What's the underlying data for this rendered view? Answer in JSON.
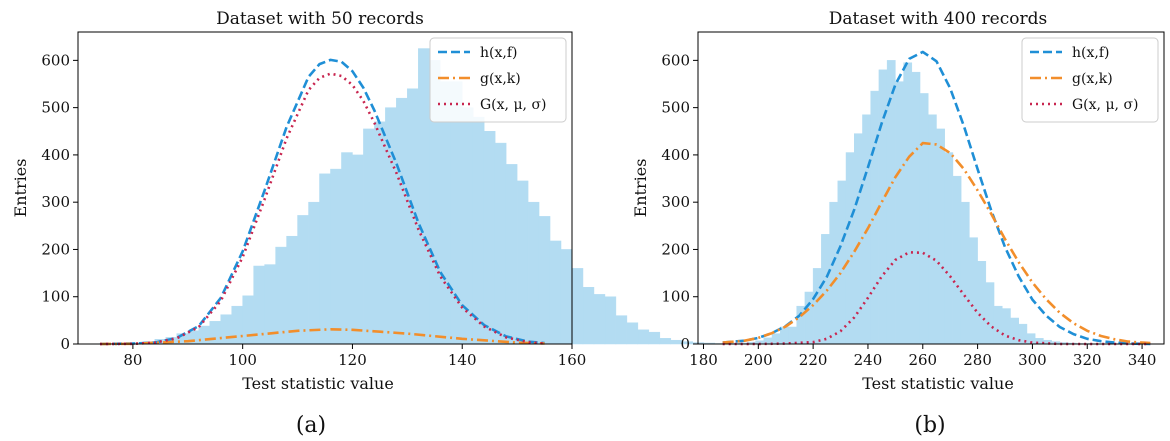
{
  "chart_data": [
    {
      "type": "bar",
      "title": "Dataset with 50 records",
      "xlabel": "Test statistic value",
      "ylabel": "Entries",
      "caption": "(a)",
      "xlim": [
        70,
        160
      ],
      "ylim": [
        0,
        660
      ],
      "xticks": [
        "80",
        "100",
        "120",
        "140",
        "160"
      ],
      "yticks": [
        "0",
        "100",
        "200",
        "300",
        "400",
        "500",
        "600"
      ],
      "xtick_values": [
        80,
        100,
        120,
        140,
        160
      ],
      "ytick_values": [
        0,
        100,
        200,
        300,
        400,
        500,
        600
      ],
      "legend_position": "top-right",
      "histogram": {
        "bin_start": 74,
        "bin_width": 2,
        "counts": [
          1,
          1,
          2,
          3,
          5,
          10,
          14,
          22,
          28,
          38,
          48,
          62,
          80,
          102,
          165,
          168,
          205,
          228,
          272,
          300,
          360,
          370,
          405,
          400,
          455,
          470,
          500,
          520,
          540,
          625,
          600,
          555,
          555,
          500,
          480,
          450,
          425,
          380,
          345,
          300,
          270,
          218,
          200,
          160,
          120,
          105,
          100,
          60,
          45,
          30,
          25,
          12,
          8,
          5,
          3,
          2,
          1,
          1,
          1,
          0,
          0
        ]
      },
      "series": [
        {
          "name": "h(x,f)",
          "style": "dashed",
          "color": "#1f8fd6",
          "x": [
            74,
            80,
            84,
            88,
            92,
            96,
            100,
            104,
            108,
            112,
            114,
            116,
            118,
            120,
            122,
            124,
            128,
            132,
            136,
            140,
            144,
            148,
            152,
            155
          ],
          "y": [
            0,
            1,
            3,
            13,
            38,
            97,
            196,
            325,
            459,
            565,
            592,
            601,
            597,
            577,
            542,
            494,
            382,
            257,
            152,
            82,
            40,
            16,
            5,
            2
          ]
        },
        {
          "name": "g(x,k)",
          "style": "dashdot",
          "color": "#f28e2b",
          "x": [
            74,
            80,
            90,
            100,
            110,
            116,
            120,
            130,
            140,
            150,
            155
          ],
          "y": [
            0,
            0.5,
            6,
            17,
            28,
            31,
            30,
            22,
            11,
            3,
            1
          ]
        },
        {
          "name": "G(x, μ, σ)",
          "style": "dotted",
          "color": "#c8254f",
          "x": [
            74,
            80,
            84,
            88,
            92,
            96,
            100,
            104,
            108,
            112,
            114,
            116,
            118,
            120,
            122,
            124,
            128,
            132,
            136,
            140,
            144,
            148,
            152,
            155
          ],
          "y": [
            0,
            0.5,
            3,
            12,
            36,
            91,
            184,
            306,
            435,
            537,
            563,
            572,
            567,
            548,
            514,
            468,
            362,
            243,
            143,
            77,
            37,
            14,
            4,
            1
          ]
        }
      ]
    },
    {
      "type": "bar",
      "title": "Dataset with 400 records",
      "xlabel": "Test statistic value",
      "ylabel": "Entries",
      "caption": "(b)",
      "xlim": [
        178,
        348
      ],
      "ylim": [
        0,
        660
      ],
      "xticks": [
        "180",
        "200",
        "220",
        "240",
        "260",
        "280",
        "300",
        "320",
        "340"
      ],
      "yticks": [
        "0",
        "100",
        "200",
        "300",
        "400",
        "500",
        "600"
      ],
      "xtick_values": [
        180,
        200,
        220,
        240,
        260,
        280,
        300,
        320,
        340
      ],
      "ytick_values": [
        0,
        100,
        200,
        300,
        400,
        500,
        600
      ],
      "legend_position": "top-right",
      "histogram": {
        "bin_start": 187,
        "bin_width": 3,
        "counts": [
          0,
          1,
          2,
          4,
          7,
          13,
          22,
          36,
          36,
          80,
          110,
          160,
          232,
          300,
          345,
          405,
          445,
          485,
          535,
          580,
          600,
          555,
          595,
          575,
          530,
          485,
          455,
          405,
          355,
          300,
          225,
          175,
          130,
          80,
          75,
          55,
          42,
          22,
          12,
          8,
          5,
          3,
          2,
          1,
          1,
          0,
          0,
          0,
          0,
          0,
          0,
          0,
          0
        ]
      },
      "series": [
        {
          "name": "h(x,f)",
          "style": "dashed",
          "color": "#1f8fd6",
          "x": [
            187,
            195,
            200,
            205,
            210,
            215,
            220,
            225,
            230,
            235,
            240,
            245,
            250,
            255,
            260,
            265,
            270,
            275,
            280,
            285,
            290,
            295,
            300,
            305,
            310,
            315,
            320,
            325,
            330,
            335,
            343
          ],
          "y": [
            3,
            7,
            13,
            23,
            38,
            60,
            95,
            142,
            207,
            284,
            374,
            467,
            549,
            603,
            618,
            598,
            541,
            461,
            370,
            282,
            205,
            143,
            94,
            60,
            36,
            21,
            11,
            6,
            3,
            1,
            0
          ]
        },
        {
          "name": "g(x,k)",
          "style": "dashdot",
          "color": "#f28e2b",
          "x": [
            187,
            195,
            200,
            205,
            210,
            215,
            220,
            225,
            230,
            235,
            240,
            245,
            250,
            255,
            260,
            265,
            270,
            275,
            280,
            285,
            290,
            295,
            300,
            305,
            310,
            315,
            320,
            325,
            330,
            335,
            343
          ],
          "y": [
            3,
            7,
            13,
            23,
            37,
            57,
            82,
            113,
            150,
            195,
            245,
            300,
            353,
            396,
            425,
            422,
            404,
            370,
            325,
            275,
            222,
            173,
            130,
            95,
            66,
            44,
            28,
            17,
            10,
            5,
            2
          ]
        },
        {
          "name": "G(x, μ, σ)",
          "style": "dotted",
          "color": "#c8254f",
          "x": [
            187,
            200,
            210,
            220,
            225,
            230,
            235,
            240,
            245,
            250,
            255,
            260,
            265,
            270,
            275,
            280,
            285,
            290,
            295,
            300,
            310,
            320,
            343
          ],
          "y": [
            0,
            0,
            1,
            4,
            11,
            27,
            56,
            98,
            143,
            178,
            194,
            193,
            176,
            143,
            104,
            66,
            37,
            18,
            8,
            3,
            0,
            0,
            0
          ]
        }
      ]
    }
  ]
}
